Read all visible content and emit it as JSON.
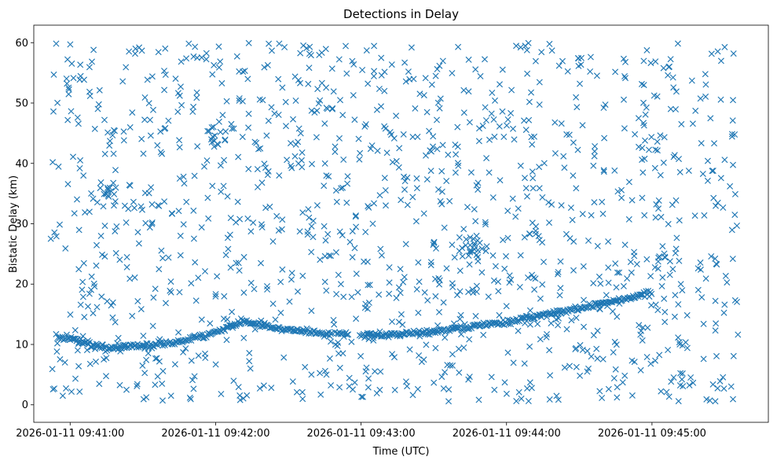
{
  "chart_data": {
    "type": "scatter",
    "title": "Detections in Delay",
    "xlabel": "Time (UTC)",
    "ylabel": "Bistatic Delay (km)",
    "marker": "x",
    "color": "#1f77b4",
    "grid": false,
    "legend": "none",
    "xlim": [
      "2026-01-11 09:40:45",
      "2026-01-11 09:45:48"
    ],
    "ylim": [
      -2.9,
      62.9
    ],
    "x_ticks": [
      "2026-01-11 09:41:00",
      "2026-01-11 09:42:00",
      "2026-01-11 09:43:00",
      "2026-01-11 09:44:00",
      "2026-01-11 09:45:00"
    ],
    "y_ticks": [
      0,
      10,
      20,
      30,
      40,
      50,
      60
    ],
    "track": [
      {
        "x": "2026-01-11 09:40:55",
        "y": 11.0
      },
      {
        "x": "2026-01-11 09:41:00",
        "y": 11.0
      },
      {
        "x": "2026-01-11 09:41:15",
        "y": 9.3
      },
      {
        "x": "2026-01-11 09:41:30",
        "y": 9.8
      },
      {
        "x": "2026-01-11 09:41:45",
        "y": 10.4
      },
      {
        "x": "2026-01-11 09:42:00",
        "y": 12.0
      },
      {
        "x": "2026-01-11 09:42:12",
        "y": 13.8
      },
      {
        "x": "2026-01-11 09:42:25",
        "y": 12.7
      },
      {
        "x": "2026-01-11 09:42:45",
        "y": 11.8
      },
      {
        "x": "2026-01-11 09:43:00",
        "y": 11.5
      },
      {
        "x": "2026-01-11 09:43:30",
        "y": 12.1
      },
      {
        "x": "2026-01-11 09:44:00",
        "y": 13.8
      },
      {
        "x": "2026-01-11 09:44:30",
        "y": 16.0
      },
      {
        "x": "2026-01-11 09:45:00",
        "y": 18.6
      }
    ],
    "track_gaps": [
      [
        "2026-01-11 09:42:48",
        "2026-01-11 09:42:50"
      ],
      [
        "2026-01-11 09:42:55",
        "2026-01-11 09:43:00"
      ]
    ],
    "clusters": [
      {
        "x": "2026-01-11 09:41:15",
        "y": 35.5
      },
      {
        "x": "2026-01-11 09:42:00",
        "y": 45.0
      },
      {
        "x": "2026-01-11 09:43:45",
        "y": 25.8
      },
      {
        "x": "2026-01-11 09:45:05",
        "y": 24.0
      }
    ],
    "clutter": {
      "count": 1250,
      "y_range": [
        0.5,
        60.0
      ]
    }
  }
}
